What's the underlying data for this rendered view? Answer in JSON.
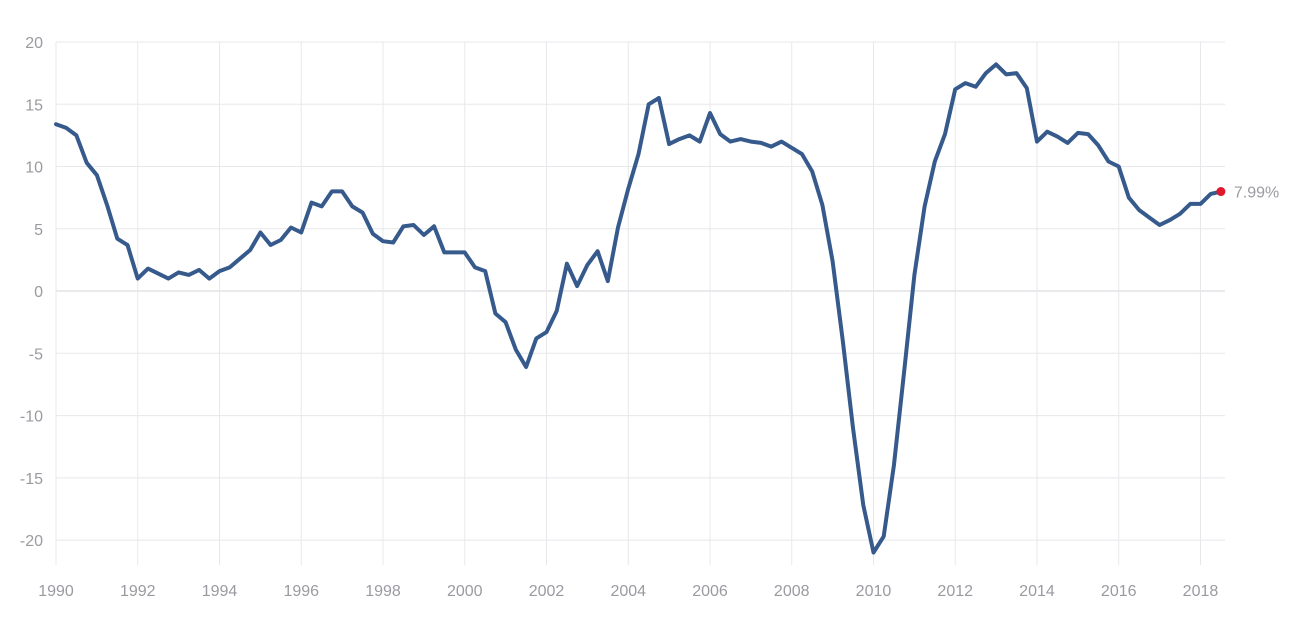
{
  "chart_data": {
    "type": "line",
    "title": "",
    "xlabel": "",
    "ylabel": "",
    "xlim": [
      1990,
      2018.6
    ],
    "ylim": [
      -22,
      20
    ],
    "grid": true,
    "legend": "none",
    "x_ticks": [
      1990,
      1992,
      1994,
      1996,
      1998,
      2000,
      2002,
      2004,
      2006,
      2008,
      2010,
      2012,
      2014,
      2016,
      2018
    ],
    "y_ticks": [
      20,
      15,
      10,
      5,
      0,
      -5,
      -10,
      -15,
      -20
    ],
    "series": [
      {
        "color": "#365a8c",
        "x": [
          1990.0,
          1990.25,
          1990.5,
          1990.75,
          1991.0,
          1991.25,
          1991.5,
          1991.75,
          1992.0,
          1992.25,
          1992.5,
          1992.75,
          1993.0,
          1993.25,
          1993.5,
          1993.75,
          1994.0,
          1994.25,
          1994.5,
          1994.75,
          1995.0,
          1995.25,
          1995.5,
          1995.75,
          1996.0,
          1996.25,
          1996.5,
          1996.75,
          1997.0,
          1997.25,
          1997.5,
          1997.75,
          1998.0,
          1998.25,
          1998.5,
          1998.75,
          1999.0,
          1999.25,
          1999.5,
          1999.75,
          2000.0,
          2000.25,
          2000.5,
          2000.75,
          2001.0,
          2001.25,
          2001.5,
          2001.75,
          2002.0,
          2002.25,
          2002.5,
          2002.75,
          2003.0,
          2003.25,
          2003.5,
          2003.75,
          2004.0,
          2004.25,
          2004.5,
          2004.75,
          2005.0,
          2005.25,
          2005.5,
          2005.75,
          2006.0,
          2006.25,
          2006.5,
          2006.75,
          2007.0,
          2007.25,
          2007.5,
          2007.75,
          2008.0,
          2008.25,
          2008.5,
          2008.75,
          2009.0,
          2009.25,
          2009.5,
          2009.75,
          2010.0,
          2010.25,
          2010.5,
          2010.75,
          2011.0,
          2011.25,
          2011.5,
          2011.75,
          2012.0,
          2012.25,
          2012.5,
          2012.75,
          2013.0,
          2013.25,
          2013.5,
          2013.75,
          2014.0,
          2014.25,
          2014.5,
          2014.75,
          2015.0,
          2015.25,
          2015.5,
          2015.75,
          2016.0,
          2016.25,
          2016.5,
          2016.75,
          2017.0,
          2017.25,
          2017.5,
          2017.75,
          2018.0,
          2018.25,
          2018.5
        ],
        "values": [
          13.4,
          13.1,
          12.5,
          10.3,
          9.3,
          6.9,
          4.2,
          3.7,
          1.0,
          1.8,
          1.4,
          1.0,
          1.5,
          1.3,
          1.7,
          1.0,
          1.6,
          1.9,
          2.6,
          3.3,
          4.7,
          3.7,
          4.1,
          5.1,
          4.7,
          7.1,
          6.8,
          8.0,
          8.0,
          6.8,
          6.3,
          4.6,
          4.0,
          3.9,
          5.2,
          5.3,
          4.5,
          5.2,
          3.1,
          3.1,
          3.1,
          1.9,
          1.6,
          -1.8,
          -2.5,
          -4.7,
          -6.1,
          -3.8,
          -3.3,
          -1.6,
          2.2,
          0.4,
          2.1,
          3.2,
          0.8,
          5.1,
          8.2,
          11.0,
          15.0,
          15.5,
          11.8,
          12.2,
          12.5,
          12.0,
          14.3,
          12.6,
          12.0,
          12.2,
          12.0,
          11.9,
          11.6,
          12.0,
          11.5,
          11.0,
          9.6,
          6.9,
          2.4,
          -4.0,
          -11.0,
          -17.2,
          -21.0,
          -19.7,
          -14.0,
          -6.5,
          1.3,
          6.8,
          10.4,
          12.6,
          16.2,
          16.7,
          16.4,
          17.5,
          18.2,
          17.4,
          17.5,
          16.3,
          12.0,
          12.8,
          12.4,
          11.9,
          12.7,
          12.6,
          11.7,
          10.4,
          10.0,
          7.5,
          6.5,
          5.9,
          5.3,
          5.7,
          6.2,
          7.0,
          7.0,
          7.8,
          7.99
        ]
      }
    ],
    "last_point": {
      "x": 2018.5,
      "value": 7.99,
      "label": "7.99%",
      "color": "#e0182d"
    }
  }
}
